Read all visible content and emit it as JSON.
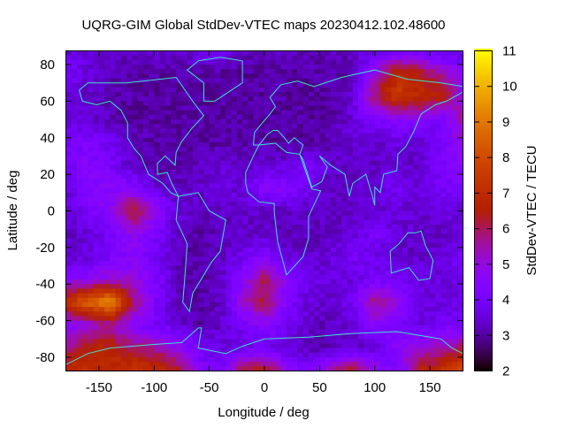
{
  "chart_data": {
    "type": "heatmap",
    "title": "UQRG-GIM Global StdDev-VTEC maps 20230412.102.48600",
    "xlabel": "Longitude / deg",
    "ylabel": "Latitude / deg",
    "colorbar_label": "StdDev-VTEC / TECU",
    "xlim": [
      -180,
      180
    ],
    "ylim": [
      -87.5,
      87.5
    ],
    "zlim": [
      2,
      11
    ],
    "xticks": [
      -150,
      -100,
      -50,
      0,
      50,
      100,
      150
    ],
    "yticks": [
      80,
      60,
      40,
      20,
      0,
      -20,
      -40,
      -60,
      -80
    ],
    "cbticks": [
      2,
      3,
      4,
      5,
      6,
      7,
      8,
      9,
      10,
      11
    ],
    "palette": "black-purple-red-orange-yellow",
    "coastline_color": "#40e0d0",
    "lon": [
      -180,
      -160,
      -140,
      -120,
      -100,
      -80,
      -60,
      -40,
      -20,
      0,
      20,
      40,
      60,
      80,
      100,
      120,
      140,
      160,
      180
    ],
    "lat": [
      87.5,
      75,
      62.5,
      50,
      37.5,
      25,
      12.5,
      0,
      -12.5,
      -25,
      -37.5,
      -50,
      -62.5,
      -75,
      -87.5
    ],
    "values": [
      [
        3.5,
        3.5,
        3.2,
        3.3,
        3.5,
        3.3,
        3.5,
        3.8,
        3.3,
        3.3,
        3.2,
        3.2,
        3.2,
        3.3,
        3.5,
        3.8,
        3.8,
        3.5,
        3.5
      ],
      [
        4,
        3.5,
        3.2,
        3,
        3,
        3,
        3,
        3,
        3,
        3,
        3,
        3,
        3,
        3,
        5,
        7,
        6.5,
        5.5,
        4.5
      ],
      [
        3.5,
        3.3,
        3,
        3,
        3,
        3,
        3,
        3,
        3,
        3,
        3,
        3,
        3,
        3.5,
        6,
        7.5,
        7,
        6.5,
        5
      ],
      [
        3.5,
        3.5,
        3.2,
        3,
        3,
        3,
        3,
        3,
        3,
        3,
        3,
        3,
        3,
        3.5,
        4,
        4.5,
        4.5,
        4,
        5.5
      ],
      [
        4,
        4.2,
        3.8,
        3.3,
        3,
        3,
        3,
        3,
        3,
        3,
        3,
        3,
        3.2,
        3.5,
        3.3,
        3.5,
        3.5,
        4,
        5
      ],
      [
        3.8,
        4.5,
        4,
        3.3,
        3,
        3,
        3.2,
        3.5,
        3.3,
        3.5,
        3.5,
        4,
        3.3,
        3.3,
        3.3,
        3.5,
        3.3,
        4,
        4.5
      ],
      [
        3.5,
        4.5,
        4.5,
        4.5,
        3.5,
        3.3,
        3.3,
        3.5,
        3.5,
        4.5,
        4.5,
        3.8,
        3.3,
        3.3,
        3.5,
        3.8,
        3.5,
        4,
        4
      ],
      [
        3.5,
        4,
        4.5,
        6.5,
        5,
        3.5,
        3.3,
        3.3,
        3.3,
        3.3,
        3.3,
        3.3,
        3.3,
        3.3,
        3.3,
        3.5,
        3.5,
        3.5,
        3.5
      ],
      [
        3.3,
        3.5,
        4,
        4.8,
        4.2,
        3.3,
        3,
        3.2,
        3.3,
        3.3,
        3.2,
        3.2,
        3.3,
        3.5,
        4,
        3.5,
        3.3,
        3.3,
        3.5
      ],
      [
        3.3,
        3.5,
        4,
        4.5,
        4,
        3.2,
        3,
        3.2,
        3.8,
        4.3,
        3.5,
        3.3,
        3.5,
        4,
        3.7,
        3.3,
        3.3,
        3.5,
        4
      ],
      [
        4.5,
        4.8,
        5,
        5,
        4.3,
        3.3,
        3,
        3.3,
        4.5,
        6,
        4.5,
        3.6,
        3.5,
        3.5,
        4,
        4,
        3.6,
        3.5,
        3.8
      ],
      [
        7,
        8.5,
        9.5,
        6,
        4.2,
        3.2,
        3,
        3.3,
        5,
        6.3,
        4.3,
        3.5,
        3.3,
        4,
        5.8,
        5,
        3.6,
        3.5,
        3.6
      ],
      [
        4.5,
        5,
        5.5,
        4.5,
        4,
        3.5,
        3,
        3.3,
        4,
        4.5,
        3.8,
        3.3,
        3.2,
        3.5,
        4.5,
        4,
        3.6,
        3.8,
        4
      ],
      [
        5.5,
        6.5,
        6.5,
        6,
        5.5,
        5,
        4,
        3.5,
        3.6,
        3.8,
        3.5,
        3.2,
        3.2,
        3.3,
        3.5,
        4.5,
        5,
        5.5,
        6
      ],
      [
        7,
        7,
        7,
        7.2,
        7.2,
        6.5,
        4.5,
        4,
        6.5,
        6.5,
        5,
        4,
        5.5,
        6.5,
        5,
        4,
        6.5,
        7,
        8
      ]
    ]
  }
}
